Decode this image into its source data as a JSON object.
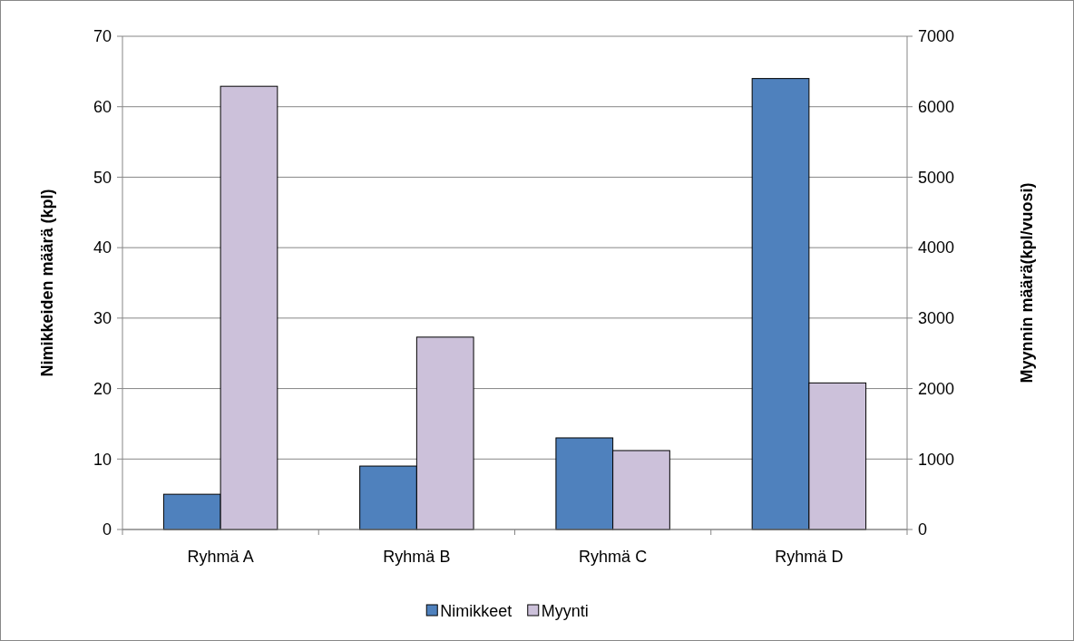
{
  "chart_data": {
    "type": "bar",
    "categories": [
      "Ryhmä A",
      "Ryhmä B",
      "Ryhmä C",
      "Ryhmä D"
    ],
    "series": [
      {
        "name": "Nimikkeet",
        "color": "#4f81bd",
        "values": [
          5,
          9,
          13,
          64
        ]
      },
      {
        "name": "Myynti",
        "color": "#ccc1da",
        "values": [
          6290,
          2730,
          1120,
          2080
        ],
        "axis": "y2"
      }
    ],
    "ylabel": "Nimikkeiden määrä (kpl)",
    "y2label": "Myynnin määrä(kpl/vuosi)",
    "ylim": [
      0,
      70
    ],
    "yticks": [
      0,
      10,
      20,
      30,
      40,
      50,
      60,
      70
    ],
    "y2lim": [
      0,
      7000
    ],
    "y2ticks": [
      0,
      1000,
      2000,
      3000,
      4000,
      5000,
      6000,
      7000
    ],
    "grid": "y",
    "legend": "bottom"
  }
}
